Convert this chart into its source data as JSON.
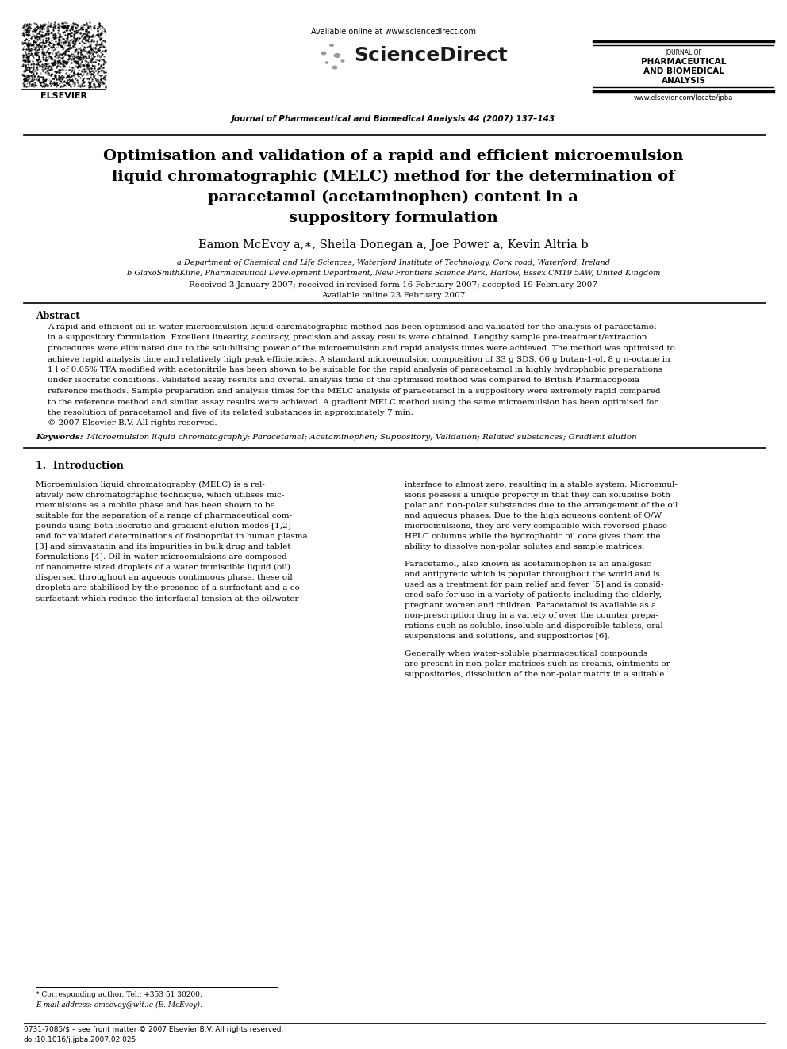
{
  "bg_color": "#ffffff",
  "page_width": 9.92,
  "page_height": 13.23,
  "header": {
    "available_online": "Available online at www.sciencedirect.com",
    "journal_name_line1": "JOURNAL OF",
    "journal_name_line2": "PHARMACEUTICAL",
    "journal_name_line3": "AND BIOMEDICAL",
    "journal_name_line4": "ANALYSIS",
    "journal_ref": "Journal of Pharmaceutical and Biomedical Analysis 44 (2007) 137–143",
    "website": "www.elsevier.com/locate/jpba"
  },
  "title_line1": "Optimisation and validation of a rapid and efficient microemulsion",
  "title_line2": "liquid chromatographic (MELC) method for the determination of",
  "title_line3": "paracetamol (acetaminophen) content in a",
  "title_line4": "suppository formulation",
  "authors": "Eamon McEvoy a,∗, Sheila Donegan a, Joe Power a, Kevin Altria b",
  "affil_a": "a Department of Chemical and Life Sciences, Waterford Institute of Technology, Cork road, Waterford, Ireland",
  "affil_b": "b GlaxoSmithKline, Pharmaceutical Development Department, New Frontiers Science Park, Harlow, Essex CM19 5AW, United Kingdom",
  "dates": "Received 3 January 2007; received in revised form 16 February 2007; accepted 19 February 2007",
  "available_online_date": "Available online 23 February 2007",
  "abstract_title": "Abstract",
  "abstract_lines": [
    "A rapid and efficient oil-in-water microemulsion liquid chromatographic method has been optimised and validated for the analysis of paracetamol",
    "in a suppository formulation. Excellent linearity, accuracy, precision and assay results were obtained. Lengthy sample pre-treatment/extraction",
    "procedures were eliminated due to the solubilising power of the microemulsion and rapid analysis times were achieved. The method was optimised to",
    "achieve rapid analysis time and relatively high peak efficiencies. A standard microemulsion composition of 33 g SDS, 66 g butan-1-ol, 8 g n-octane in",
    "1 l of 0.05% TFA modified with acetonitrile has been shown to be suitable for the rapid analysis of paracetamol in highly hydrophobic preparations",
    "under isocratic conditions. Validated assay results and overall analysis time of the optimised method was compared to British Pharmacopoeia",
    "reference methods. Sample preparation and analysis times for the MELC analysis of paracetamol in a suppository were extremely rapid compared",
    "to the reference method and similar assay results were achieved. A gradient MELC method using the same microemulsion has been optimised for",
    "the resolution of paracetamol and five of its related substances in approximately 7 min.",
    "© 2007 Elsevier B.V. All rights reserved."
  ],
  "keywords_label": "Keywords:",
  "keywords_text": "  Microemulsion liquid chromatography; Paracetamol; Acetaminophen; Suppository; Validation; Related substances; Gradient elution",
  "section1_title": "1.  Introduction",
  "left_col_lines": [
    "Microemulsion liquid chromatography (MELC) is a rel-",
    "atively new chromatographic technique, which utilises mic-",
    "roemulsions as a mobile phase and has been shown to be",
    "suitable for the separation of a range of pharmaceutical com-",
    "pounds using both isocratic and gradient elution modes [1,2]",
    "and for validated determinations of fosinoprilat in human plasma",
    "[3] and simvastatin and its impurities in bulk drug and tablet",
    "formulations [4]. Oil-in-water microemulsions are composed",
    "of nanometre sized droplets of a water immiscible liquid (oil)",
    "dispersed throughout an aqueous continuous phase, these oil",
    "droplets are stabilised by the presence of a surfactant and a co-",
    "surfactant which reduce the interfacial tension at the oil/water"
  ],
  "right_col_p1": [
    "interface to almost zero, resulting in a stable system. Microemul-",
    "sions possess a unique property in that they can solubilise both",
    "polar and non-polar substances due to the arrangement of the oil",
    "and aqueous phases. Due to the high aqueous content of O/W",
    "microemulsions, they are very compatible with reversed-phase",
    "HPLC columns while the hydrophobic oil core gives them the",
    "ability to dissolve non-polar solutes and sample matrices."
  ],
  "right_col_p2": [
    "Paracetamol, also known as acetaminophen is an analgesic",
    "and antipyretic which is popular throughout the world and is",
    "used as a treatment for pain relief and fever [5] and is consid-",
    "ered safe for use in a variety of patients including the elderly,",
    "pregnant women and children. Paracetamol is available as a",
    "non-prescription drug in a variety of over the counter prepa-",
    "rations such as soluble, insoluble and dispersible tablets, oral",
    "suspensions and solutions, and suppositories [6]."
  ],
  "right_col_p3": [
    "Generally when water-soluble pharmaceutical compounds",
    "are present in non-polar matrices such as creams, ointments or",
    "suppositories, dissolution of the non-polar matrix in a suitable"
  ],
  "footnote_line1": "* Corresponding author. Tel.: +353 51 30200.",
  "footnote_line2": "E-mail address: emcevoy@wit.ie (E. McEvoy).",
  "footer_issn": "0731-7085/$ – see front matter © 2007 Elsevier B.V. All rights reserved.",
  "footer_doi": "doi:10.1016/j.jpba.2007.02.025"
}
